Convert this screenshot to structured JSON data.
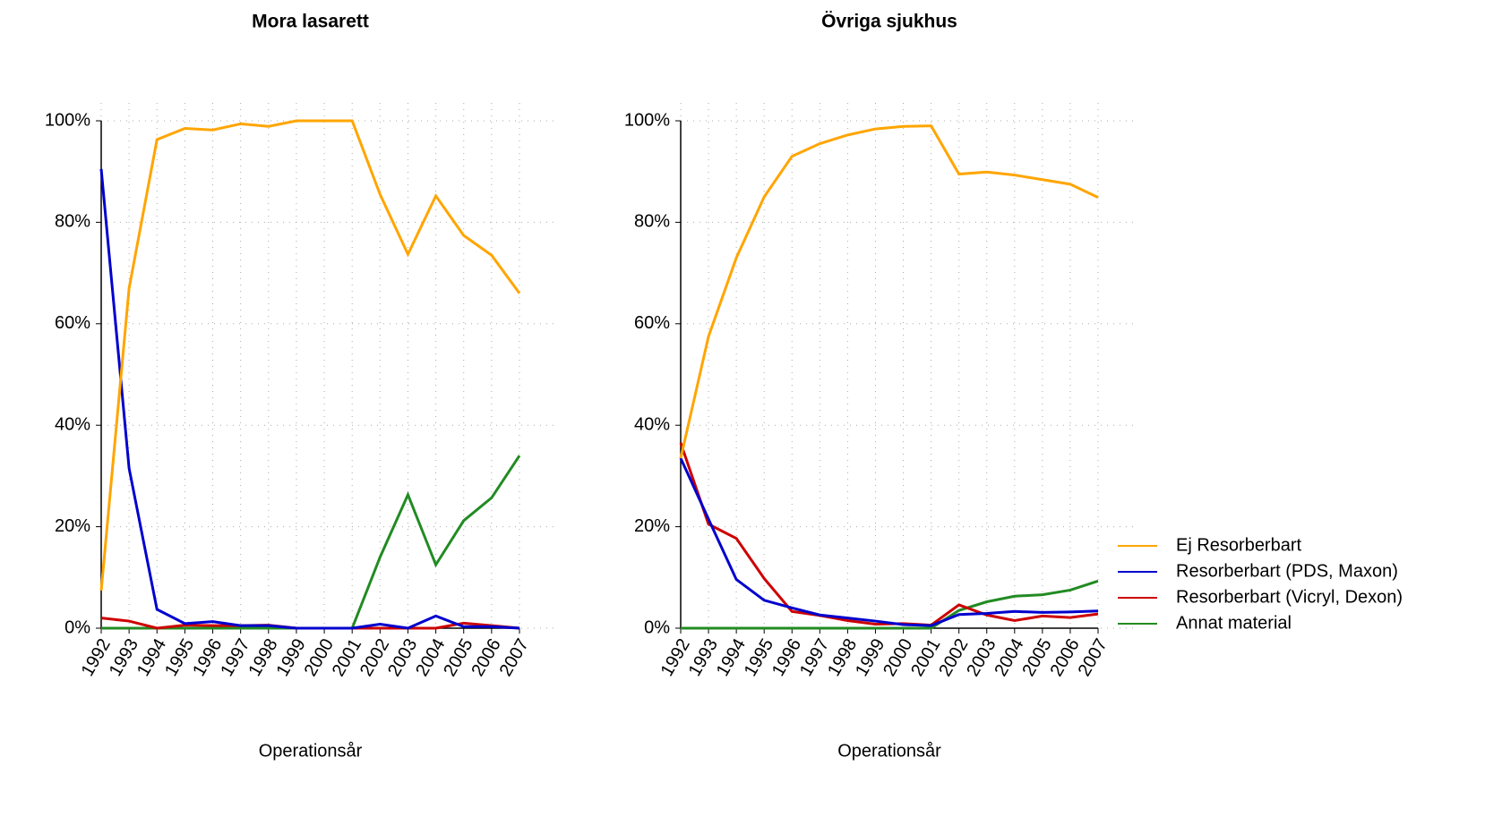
{
  "chart_data": [
    {
      "type": "line",
      "title": "Mora lasarett",
      "x_label": "Operationsår",
      "categories": [
        "1992",
        "1993",
        "1994",
        "1995",
        "1996",
        "1997",
        "1998",
        "1999",
        "2000",
        "2001",
        "2002",
        "2003",
        "2004",
        "2005",
        "2006",
        "2007"
      ],
      "ylim": [
        0,
        100
      ],
      "yticks": [
        {
          "value": 0,
          "label": "0%"
        },
        {
          "value": 20,
          "label": "20%"
        },
        {
          "value": 40,
          "label": "40%"
        },
        {
          "value": 60,
          "label": "60%"
        },
        {
          "value": 80,
          "label": "80%"
        },
        {
          "value": 100,
          "label": "100%"
        }
      ],
      "grid": true,
      "legend": false,
      "series": [
        {
          "color": "#FFA500",
          "values": [
            7.4,
            67,
            96.3,
            98.5,
            98.2,
            99.4,
            98.9,
            100,
            100,
            100,
            85.5,
            73.7,
            85.2,
            77.4,
            73.5,
            66
          ]
        },
        {
          "color": "#0000CD",
          "values": [
            90.5,
            31.5,
            3.7,
            0.9,
            1.3,
            0.5,
            0.5,
            0,
            0,
            0,
            0.8,
            0,
            2.4,
            0.3,
            0.3,
            0
          ]
        },
        {
          "color": "#CD0000",
          "values": [
            2,
            1.4,
            0,
            0.6,
            0.5,
            0.5,
            0.6,
            0,
            0,
            0,
            0,
            0,
            0,
            1,
            0.5,
            0
          ]
        },
        {
          "color": "#228B22",
          "values": [
            0,
            0,
            0,
            0,
            0,
            0,
            0,
            0,
            0,
            0,
            14,
            26.3,
            12.5,
            21.2,
            25.7,
            34
          ]
        }
      ]
    },
    {
      "type": "line",
      "title": "Övriga sjukhus",
      "x_label": "Operationsår",
      "categories": [
        "1992",
        "1993",
        "1994",
        "1995",
        "1996",
        "1997",
        "1998",
        "1999",
        "2000",
        "2001",
        "2002",
        "2003",
        "2004",
        "2005",
        "2006",
        "2007"
      ],
      "ylim": [
        0,
        100
      ],
      "yticks": [
        {
          "value": 0,
          "label": "0%"
        },
        {
          "value": 20,
          "label": "20%"
        },
        {
          "value": 40,
          "label": "40%"
        },
        {
          "value": 60,
          "label": "60%"
        },
        {
          "value": 80,
          "label": "80%"
        },
        {
          "value": 100,
          "label": "100%"
        }
      ],
      "grid": true,
      "legend": "right",
      "series": [
        {
          "name": "Ej Resorberbart",
          "color": "#FFA500",
          "values": [
            33.5,
            57.5,
            73,
            85,
            93,
            95.5,
            97.2,
            98.4,
            98.9,
            99,
            89.5,
            89.9,
            89.3,
            88.4,
            87.5,
            84.9
          ]
        },
        {
          "name": "Resorberbart (PDS, Maxon)",
          "color": "#0000CD",
          "values": [
            33.5,
            21.5,
            9.6,
            5.5,
            4,
            2.6,
            2,
            1.4,
            0.7,
            0.5,
            2.7,
            2.9,
            3.3,
            3.1,
            3.2,
            3.4
          ]
        },
        {
          "name": "Resorberbart (Vicryl, Dexon)",
          "color": "#CD0000",
          "values": [
            36.5,
            20.5,
            17.7,
            9.8,
            3.3,
            2.5,
            1.5,
            0.8,
            0.9,
            0.6,
            4.6,
            2.6,
            1.5,
            2.4,
            2.1,
            2.8
          ]
        },
        {
          "name": "Annat material",
          "color": "#228B22",
          "values": [
            0,
            0,
            0,
            0,
            0,
            0,
            0,
            0,
            0,
            0,
            3.5,
            5.2,
            6.3,
            6.6,
            7.5,
            9.3
          ]
        }
      ]
    }
  ]
}
